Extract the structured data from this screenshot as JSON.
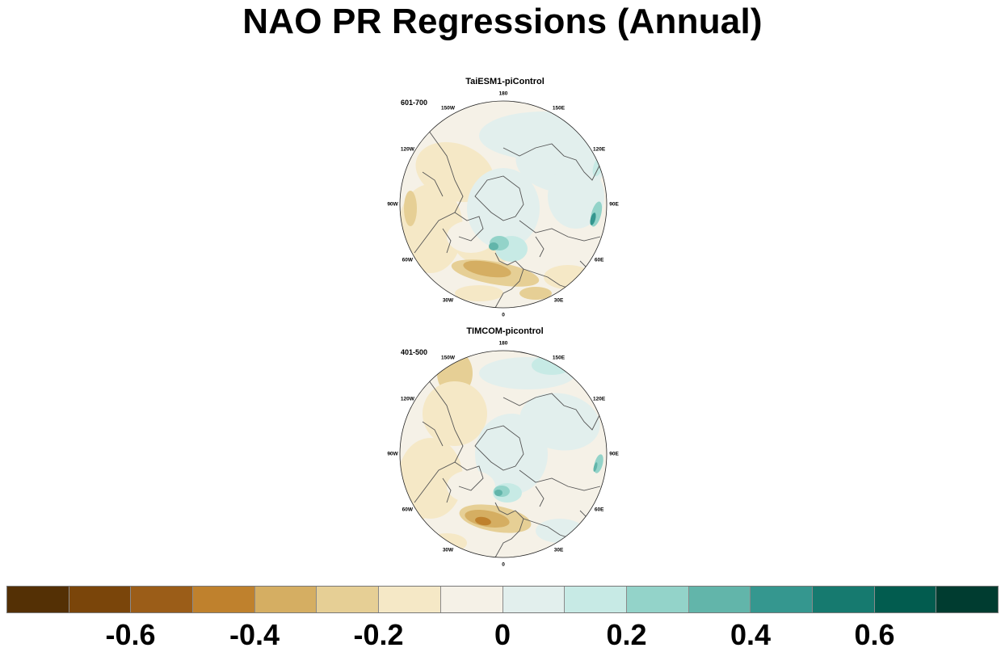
{
  "title": "NAO PR Regressions (Annual)",
  "panels": [
    {
      "title": "TaiESM1-piControl",
      "period": "601-700"
    },
    {
      "title": "TIMCOM-picontrol",
      "period": "401-500"
    }
  ],
  "longitude_labels": [
    "180",
    "150E",
    "120E",
    "90E",
    "60E",
    "30E",
    "0",
    "30W",
    "60W",
    "90W",
    "120W",
    "150W"
  ],
  "colorbar": {
    "colors": [
      "#543005",
      "#7a450a",
      "#9b5d18",
      "#bf812d",
      "#d5ae62",
      "#e6cf95",
      "#f5e8c6",
      "#f5f1e7",
      "#e2efed",
      "#c7eae5",
      "#93d3c9",
      "#62b5aa",
      "#35978f",
      "#167a6f",
      "#025c4f",
      "#003c30"
    ],
    "tick_labels": [
      "-0.6",
      "-0.4",
      "-0.2",
      "0",
      "0.2",
      "0.4",
      "0.6"
    ]
  }
}
